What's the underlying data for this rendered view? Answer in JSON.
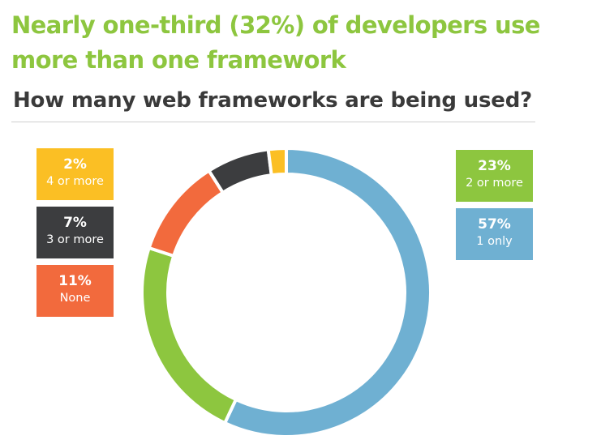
{
  "headline": "Nearly one-third (32%) of developers use more than one framework",
  "subtitle": {
    "bold": "How many web frameworks",
    "rest": "are being used?"
  },
  "chart_data": {
    "type": "pie",
    "donut": true,
    "title": "How many web frameworks are being used?",
    "slices": [
      {
        "label": "1 only",
        "value": 57,
        "display": "57%",
        "color": "#6fb0d2"
      },
      {
        "label": "2 or more",
        "value": 23,
        "display": "23%",
        "color": "#8dc63f"
      },
      {
        "label": "None",
        "value": 11,
        "display": "11%",
        "color": "#f26a3d"
      },
      {
        "label": "3 or more",
        "value": 7,
        "display": "7%",
        "color": "#3c3d3f"
      },
      {
        "label": "4 or more",
        "value": 2,
        "display": "2%",
        "color": "#fbbf24"
      }
    ]
  }
}
